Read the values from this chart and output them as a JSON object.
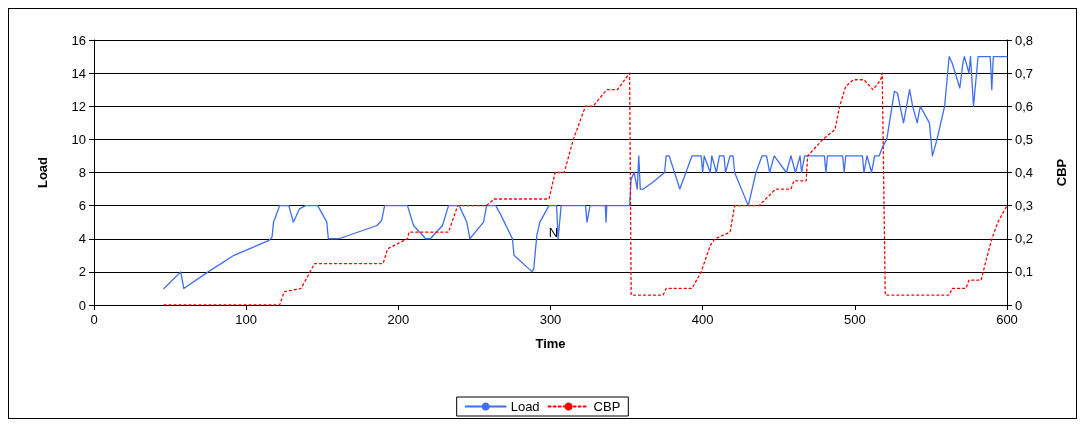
{
  "chart_data": {
    "type": "line",
    "xlabel": "Time",
    "ylabel": "Load",
    "y2label": "CBP",
    "xlim": [
      0,
      600
    ],
    "xticks": [
      0,
      100,
      200,
      300,
      400,
      500,
      600
    ],
    "ylim": [
      0,
      16
    ],
    "yticks": [
      0,
      2,
      4,
      6,
      8,
      10,
      12,
      14,
      16
    ],
    "y2lim": [
      0,
      0.8
    ],
    "y2ticks": [
      0,
      {
        "value": 0.1,
        "label": "0,1"
      },
      {
        "value": 0.2,
        "label": "0,2"
      },
      {
        "value": 0.3,
        "label": "0,3"
      },
      {
        "value": 0.4,
        "label": "0,4"
      },
      {
        "value": 0.5,
        "label": "0,5"
      },
      {
        "value": 0.6,
        "label": "0,6"
      },
      {
        "value": 0.7,
        "label": "0,7"
      },
      {
        "value": 0.8,
        "label": "0,8"
      }
    ],
    "grid": "y",
    "legend": "bottom",
    "marker": "none",
    "annotations": [
      {
        "text": "N",
        "x": 302,
        "y": 4.4
      }
    ],
    "series": [
      {
        "name": "Load",
        "color": "#3f6fef",
        "line_style": "solid",
        "x": [
          46,
          57,
          59,
          75,
          92,
          115,
          117,
          118,
          122,
          128,
          131,
          135,
          139,
          147,
          153,
          154,
          161,
          186,
          189,
          191,
          206,
          210,
          218,
          221,
          229,
          233,
          240,
          245,
          247,
          256,
          258,
          264,
          267,
          275,
          276,
          288,
          289,
          291,
          293,
          299,
          304,
          305,
          307,
          323,
          324,
          326,
          336,
          336.5,
          337,
          352,
          353,
          355,
          357,
          358,
          359,
          361,
          367,
          375,
          376,
          378,
          385,
          393,
          399,
          400,
          401,
          405,
          406,
          409,
          411,
          414,
          415,
          418,
          420,
          421,
          430,
          435,
          439,
          442,
          444,
          447,
          455,
          458,
          461,
          464,
          465,
          467,
          480,
          481,
          482,
          492,
          493,
          494,
          504,
          505,
          506,
          508,
          511,
          513,
          516,
          518,
          521,
          526,
          528,
          532,
          536,
          538,
          541,
          543,
          549,
          551,
          554,
          559,
          560,
          562,
          564,
          569,
          571,
          572,
          575,
          576,
          578,
          581,
          589,
          590,
          591,
          600
        ],
        "values": [
          1,
          2,
          1,
          2,
          3,
          3.9,
          4.1,
          5,
          6,
          6,
          5,
          5.8,
          6,
          6,
          5,
          4,
          4,
          4.8,
          5.1,
          6,
          6,
          4.8,
          4,
          4,
          4.8,
          6,
          6,
          5,
          4,
          5,
          6,
          6,
          5.5,
          4,
          3,
          2,
          2.2,
          4.2,
          5,
          6,
          6,
          4,
          6,
          6,
          5,
          6,
          6,
          5,
          6,
          6,
          7.6,
          8,
          7,
          9,
          7,
          7,
          7.4,
          8,
          9,
          9,
          7,
          9,
          9,
          8,
          9,
          8,
          9,
          8,
          9,
          9,
          8,
          9,
          9,
          8,
          6,
          8,
          9,
          9,
          8,
          9,
          8,
          9,
          8,
          9,
          8,
          9,
          9,
          8,
          9,
          9,
          8,
          9,
          9,
          9,
          8,
          9,
          8,
          9,
          9,
          9.5,
          10,
          12.9,
          12.8,
          11,
          13,
          12,
          11,
          12,
          11,
          9,
          10,
          12,
          13,
          15,
          14.6,
          13.1,
          14.6,
          15,
          14,
          15,
          12,
          15,
          15,
          13,
          15,
          15
        ]
      },
      {
        "name": "CBP",
        "color": "#ff0000",
        "line_style": "dotted",
        "axis": "y2",
        "x": [
          46,
          122,
          125,
          136,
          145,
          190,
          193,
          206,
          207,
          233,
          239,
          258,
          263,
          299,
          303,
          309,
          315,
          323,
          328,
          337,
          344,
          352,
          353,
          374,
          376,
          393,
          399,
          405,
          408,
          418,
          421,
          437,
          448,
          458,
          460,
          468,
          469,
          479,
          487,
          490,
          494,
          499,
          506,
          512,
          517,
          518,
          520,
          562,
          564,
          573,
          575,
          583,
          586,
          590,
          594,
          600
        ],
        "values": [
          0,
          0,
          0.04,
          0.05,
          0.125,
          0.125,
          0.17,
          0.2,
          0.22,
          0.22,
          0.3,
          0.3,
          0.32,
          0.32,
          0.4,
          0.4,
          0.5,
          0.6,
          0.6,
          0.65,
          0.65,
          0.7,
          0.03,
          0.03,
          0.05,
          0.05,
          0.1,
          0.18,
          0.2,
          0.22,
          0.3,
          0.3,
          0.35,
          0.35,
          0.375,
          0.375,
          0.45,
          0.5,
          0.53,
          0.6,
          0.66,
          0.68,
          0.68,
          0.65,
          0.68,
          0.7,
          0.03,
          0.03,
          0.05,
          0.05,
          0.075,
          0.075,
          0.13,
          0.2,
          0.25,
          0.3
        ]
      }
    ]
  }
}
